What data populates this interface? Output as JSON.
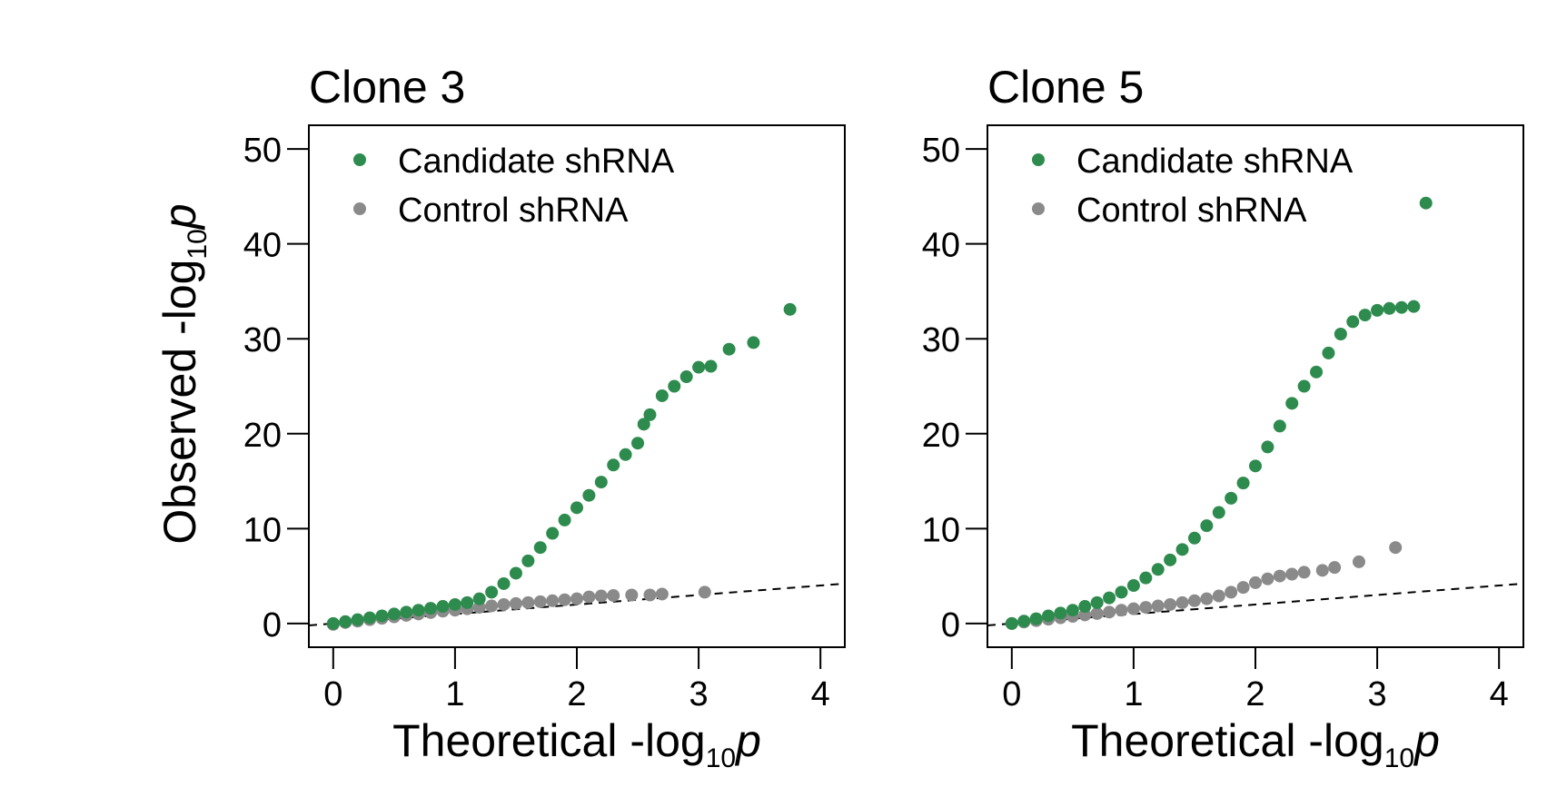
{
  "figure": {
    "ylabel_main": "Observed -log",
    "ylabel_sub": "10",
    "ylabel_italic": "p"
  },
  "colors": {
    "candidate": "#2e8b4e",
    "control": "#8a8a8a",
    "reference": "#000000"
  },
  "chart_data": [
    {
      "type": "scatter",
      "title": "Clone 3",
      "xlabel_main": "Theoretical -log",
      "xlabel_sub": "10",
      "xlabel_italic": "p",
      "xlim": [
        -0.2,
        4.2
      ],
      "ylim": [
        -2.5,
        52.5
      ],
      "xticks": [
        0,
        1,
        2,
        3,
        4
      ],
      "yticks": [
        0,
        10,
        20,
        30,
        40,
        50
      ],
      "legend": {
        "position": "top-left",
        "entries": [
          "Candidate shRNA",
          "Control shRNA"
        ]
      },
      "reference_line": {
        "style": "dashed",
        "slope": 1,
        "intercept": 0
      },
      "series": [
        {
          "name": "Candidate shRNA",
          "color_key": "candidate",
          "points": [
            [
              0,
              0
            ],
            [
              0.1,
              0.2
            ],
            [
              0.2,
              0.4
            ],
            [
              0.3,
              0.6
            ],
            [
              0.4,
              0.8
            ],
            [
              0.5,
              1.0
            ],
            [
              0.6,
              1.2
            ],
            [
              0.7,
              1.4
            ],
            [
              0.8,
              1.6
            ],
            [
              0.9,
              1.8
            ],
            [
              1.0,
              2.0
            ],
            [
              1.1,
              2.2
            ],
            [
              1.2,
              2.6
            ],
            [
              1.3,
              3.3
            ],
            [
              1.4,
              4.2
            ],
            [
              1.5,
              5.3
            ],
            [
              1.6,
              6.6
            ],
            [
              1.7,
              8.0
            ],
            [
              1.8,
              9.5
            ],
            [
              1.9,
              10.9
            ],
            [
              2.0,
              12.2
            ],
            [
              2.1,
              13.5
            ],
            [
              2.2,
              14.9
            ],
            [
              2.3,
              16.7
            ],
            [
              2.4,
              17.8
            ],
            [
              2.5,
              19.0
            ],
            [
              2.55,
              21.0
            ],
            [
              2.6,
              22.0
            ],
            [
              2.7,
              24.0
            ],
            [
              2.8,
              25.0
            ],
            [
              2.9,
              26.0
            ],
            [
              3.0,
              27.0
            ],
            [
              3.1,
              27.1
            ],
            [
              3.25,
              28.9
            ],
            [
              3.45,
              29.6
            ],
            [
              3.75,
              33.1
            ]
          ]
        },
        {
          "name": "Control shRNA",
          "color_key": "control",
          "points": [
            [
              0,
              -0.1
            ],
            [
              0.1,
              0.1
            ],
            [
              0.2,
              0.25
            ],
            [
              0.3,
              0.4
            ],
            [
              0.4,
              0.55
            ],
            [
              0.5,
              0.7
            ],
            [
              0.6,
              0.85
            ],
            [
              0.7,
              1.0
            ],
            [
              0.8,
              1.15
            ],
            [
              0.9,
              1.3
            ],
            [
              1.0,
              1.4
            ],
            [
              1.1,
              1.55
            ],
            [
              1.2,
              1.7
            ],
            [
              1.3,
              1.85
            ],
            [
              1.4,
              2.0
            ],
            [
              1.5,
              2.1
            ],
            [
              1.6,
              2.2
            ],
            [
              1.7,
              2.3
            ],
            [
              1.8,
              2.4
            ],
            [
              1.9,
              2.5
            ],
            [
              2.0,
              2.6
            ],
            [
              2.1,
              2.8
            ],
            [
              2.2,
              2.9
            ],
            [
              2.3,
              2.95
            ],
            [
              2.45,
              3.0
            ],
            [
              2.6,
              3.0
            ],
            [
              2.7,
              3.1
            ],
            [
              3.05,
              3.3
            ]
          ]
        }
      ]
    },
    {
      "type": "scatter",
      "title": "Clone 5",
      "xlabel_main": "Theoretical -log",
      "xlabel_sub": "10",
      "xlabel_italic": "p",
      "xlim": [
        -0.2,
        4.2
      ],
      "ylim": [
        -2.5,
        52.5
      ],
      "xticks": [
        0,
        1,
        2,
        3,
        4
      ],
      "yticks": [
        0,
        10,
        20,
        30,
        40,
        50
      ],
      "legend": {
        "position": "top-left",
        "entries": [
          "Candidate shRNA",
          "Control shRNA"
        ]
      },
      "reference_line": {
        "style": "dashed",
        "slope": 1,
        "intercept": 0
      },
      "series": [
        {
          "name": "Candidate shRNA",
          "color_key": "candidate",
          "points": [
            [
              0,
              0
            ],
            [
              0.1,
              0.25
            ],
            [
              0.2,
              0.5
            ],
            [
              0.3,
              0.8
            ],
            [
              0.4,
              1.1
            ],
            [
              0.5,
              1.4
            ],
            [
              0.6,
              1.8
            ],
            [
              0.7,
              2.2
            ],
            [
              0.8,
              2.7
            ],
            [
              0.9,
              3.3
            ],
            [
              1.0,
              4.0
            ],
            [
              1.1,
              4.8
            ],
            [
              1.2,
              5.7
            ],
            [
              1.3,
              6.7
            ],
            [
              1.4,
              7.8
            ],
            [
              1.5,
              9.0
            ],
            [
              1.6,
              10.3
            ],
            [
              1.7,
              11.7
            ],
            [
              1.8,
              13.2
            ],
            [
              1.9,
              14.8
            ],
            [
              2.0,
              16.6
            ],
            [
              2.1,
              18.6
            ],
            [
              2.2,
              20.8
            ],
            [
              2.3,
              23.2
            ],
            [
              2.4,
              25.0
            ],
            [
              2.5,
              26.5
            ],
            [
              2.6,
              28.5
            ],
            [
              2.7,
              30.5
            ],
            [
              2.8,
              31.8
            ],
            [
              2.9,
              32.5
            ],
            [
              3.0,
              33.0
            ],
            [
              3.1,
              33.2
            ],
            [
              3.2,
              33.3
            ],
            [
              3.3,
              33.4
            ],
            [
              3.4,
              44.3
            ]
          ]
        },
        {
          "name": "Control shRNA",
          "color_key": "control",
          "points": [
            [
              0,
              0
            ],
            [
              0.1,
              0.15
            ],
            [
              0.2,
              0.3
            ],
            [
              0.3,
              0.45
            ],
            [
              0.4,
              0.6
            ],
            [
              0.5,
              0.75
            ],
            [
              0.6,
              0.9
            ],
            [
              0.7,
              1.05
            ],
            [
              0.8,
              1.2
            ],
            [
              0.9,
              1.4
            ],
            [
              1.0,
              1.55
            ],
            [
              1.1,
              1.7
            ],
            [
              1.2,
              1.85
            ],
            [
              1.3,
              2.0
            ],
            [
              1.4,
              2.2
            ],
            [
              1.5,
              2.4
            ],
            [
              1.6,
              2.6
            ],
            [
              1.7,
              2.9
            ],
            [
              1.8,
              3.3
            ],
            [
              1.9,
              3.8
            ],
            [
              2.0,
              4.3
            ],
            [
              2.1,
              4.7
            ],
            [
              2.2,
              5.0
            ],
            [
              2.3,
              5.2
            ],
            [
              2.4,
              5.4
            ],
            [
              2.55,
              5.6
            ],
            [
              2.65,
              5.9
            ],
            [
              2.85,
              6.5
            ],
            [
              3.15,
              8.0
            ]
          ]
        }
      ]
    }
  ]
}
